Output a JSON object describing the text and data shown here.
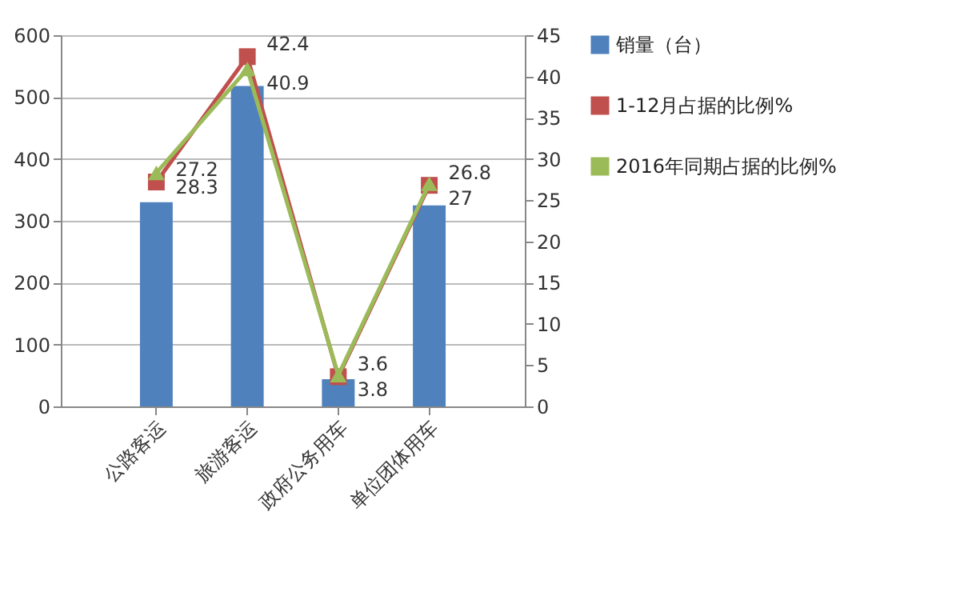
{
  "chart_data": {
    "type": "bar",
    "categories": [
      "公路客运",
      "旅游客运",
      "政府公务用车",
      "单位团体用车"
    ],
    "ylim": [
      0,
      600
    ],
    "yticks": [
      0,
      100,
      200,
      300,
      400,
      500,
      600
    ],
    "y2lim": [
      0,
      45
    ],
    "y2ticks": [
      0,
      5,
      10,
      15,
      20,
      25,
      30,
      35,
      40,
      45
    ],
    "grid": "y",
    "legend": "right",
    "series": [
      {
        "name": "销量（台）",
        "color": "#4f81bd",
        "values": [
          330,
          518,
          44,
          325
        ]
      },
      {
        "name": "1-12月占据的比例%",
        "type": "line",
        "axis": "y2",
        "marker": "square",
        "color": "#c0504d",
        "values": [
          27.2,
          42.4,
          3.6,
          26.8
        ],
        "value_labels": [
          "27.2",
          "42.4",
          "3.6",
          "26.8"
        ]
      },
      {
        "name": "2016年同期占据的比例%",
        "type": "line",
        "axis": "y2",
        "marker": "triangle",
        "color": "#9bbb59",
        "values": [
          28.3,
          40.9,
          3.8,
          27
        ],
        "value_labels": [
          "28.3",
          "40.9",
          "3.8",
          "27"
        ]
      }
    ]
  }
}
